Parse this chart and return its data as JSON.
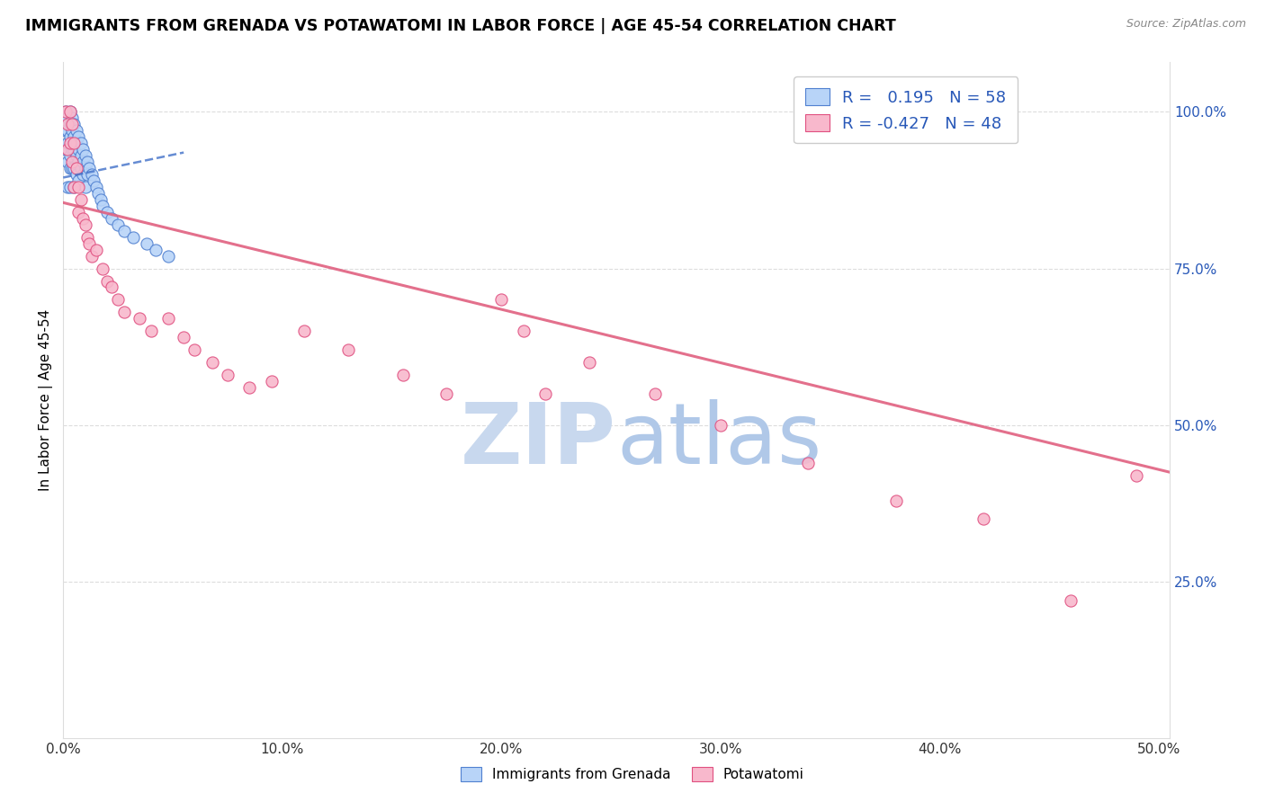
{
  "title": "IMMIGRANTS FROM GRENADA VS POTAWATOMI IN LABOR FORCE | AGE 45-54 CORRELATION CHART",
  "source": "Source: ZipAtlas.com",
  "ylabel": "In Labor Force | Age 45-54",
  "xlim": [
    0.0,
    0.505
  ],
  "ylim": [
    0.0,
    1.08
  ],
  "xtick_vals": [
    0.0,
    0.1,
    0.2,
    0.3,
    0.4,
    0.5
  ],
  "xticklabels": [
    "0.0%",
    "10.0%",
    "20.0%",
    "30.0%",
    "40.0%",
    "50.0%"
  ],
  "yticks_right": [
    0.25,
    0.5,
    0.75,
    1.0
  ],
  "ytick_labels_right": [
    "25.0%",
    "50.0%",
    "75.0%",
    "100.0%"
  ],
  "legend_label1": "Immigrants from Grenada",
  "legend_label2": "Potawatomi",
  "R1": 0.195,
  "N1": 58,
  "R2": -0.427,
  "N2": 48,
  "color_grenada_fill": "#b8d4f8",
  "color_grenada_edge": "#5080d0",
  "color_potawatomi_fill": "#f8b8cc",
  "color_potawatomi_edge": "#e05080",
  "color_line_grenada": "#4070c8",
  "color_line_potawatomi": "#e06080",
  "color_r_value": "#2858b8",
  "watermark_zip": "ZIP",
  "watermark_atlas": "atlas",
  "watermark_color_zip": "#c8d8ee",
  "watermark_color_atlas": "#b0c8e8",
  "background_color": "#ffffff",
  "grid_color": "#dddddd",
  "grenada_x": [
    0.0005,
    0.001,
    0.001,
    0.001,
    0.002,
    0.002,
    0.002,
    0.002,
    0.002,
    0.003,
    0.003,
    0.003,
    0.003,
    0.003,
    0.003,
    0.004,
    0.004,
    0.004,
    0.004,
    0.005,
    0.005,
    0.005,
    0.005,
    0.005,
    0.006,
    0.006,
    0.006,
    0.006,
    0.007,
    0.007,
    0.007,
    0.007,
    0.008,
    0.008,
    0.008,
    0.009,
    0.009,
    0.009,
    0.01,
    0.01,
    0.01,
    0.011,
    0.011,
    0.012,
    0.013,
    0.014,
    0.015,
    0.016,
    0.017,
    0.018,
    0.02,
    0.022,
    0.025,
    0.028,
    0.032,
    0.038,
    0.042,
    0.048
  ],
  "grenada_y": [
    0.98,
    1.0,
    0.97,
    0.94,
    0.99,
    0.97,
    0.95,
    0.92,
    0.88,
    1.0,
    0.98,
    0.96,
    0.93,
    0.91,
    0.88,
    0.99,
    0.97,
    0.94,
    0.91,
    0.98,
    0.96,
    0.94,
    0.91,
    0.88,
    0.97,
    0.95,
    0.93,
    0.9,
    0.96,
    0.94,
    0.92,
    0.89,
    0.95,
    0.93,
    0.91,
    0.94,
    0.92,
    0.9,
    0.93,
    0.91,
    0.88,
    0.92,
    0.9,
    0.91,
    0.9,
    0.89,
    0.88,
    0.87,
    0.86,
    0.85,
    0.84,
    0.83,
    0.82,
    0.81,
    0.8,
    0.79,
    0.78,
    0.77
  ],
  "potawatomi_x": [
    0.001,
    0.002,
    0.002,
    0.003,
    0.003,
    0.004,
    0.004,
    0.005,
    0.005,
    0.006,
    0.007,
    0.007,
    0.008,
    0.009,
    0.01,
    0.011,
    0.012,
    0.013,
    0.015,
    0.018,
    0.02,
    0.022,
    0.025,
    0.028,
    0.035,
    0.04,
    0.048,
    0.055,
    0.06,
    0.068,
    0.075,
    0.085,
    0.095,
    0.11,
    0.13,
    0.155,
    0.175,
    0.2,
    0.21,
    0.22,
    0.24,
    0.27,
    0.3,
    0.34,
    0.38,
    0.42,
    0.46,
    0.49
  ],
  "potawatomi_y": [
    1.0,
    0.98,
    0.94,
    1.0,
    0.95,
    0.98,
    0.92,
    0.95,
    0.88,
    0.91,
    0.88,
    0.84,
    0.86,
    0.83,
    0.82,
    0.8,
    0.79,
    0.77,
    0.78,
    0.75,
    0.73,
    0.72,
    0.7,
    0.68,
    0.67,
    0.65,
    0.67,
    0.64,
    0.62,
    0.6,
    0.58,
    0.56,
    0.57,
    0.65,
    0.62,
    0.58,
    0.55,
    0.7,
    0.65,
    0.55,
    0.6,
    0.55,
    0.5,
    0.44,
    0.38,
    0.35,
    0.22,
    0.42
  ],
  "line_grenada_x0": 0.0,
  "line_grenada_x1": 0.055,
  "line_grenada_y0": 0.895,
  "line_grenada_y1": 0.935,
  "line_potawatomi_x0": 0.0,
  "line_potawatomi_x1": 0.505,
  "line_potawatomi_y0": 0.855,
  "line_potawatomi_y1": 0.425
}
